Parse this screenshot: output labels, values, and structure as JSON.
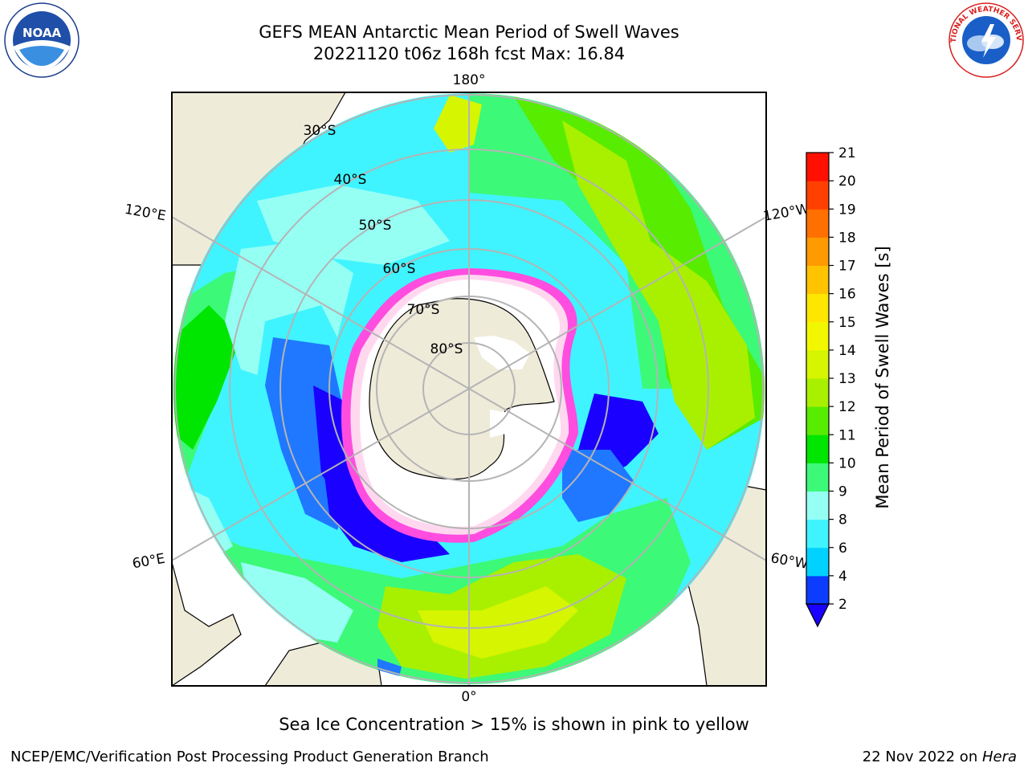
{
  "title": {
    "line1": "GEFS MEAN Antarctic Mean Period of Swell Waves",
    "line2": "20221120 t06z 168h fcst   Max: 16.84"
  },
  "map": {
    "projection": "south polar stereographic",
    "longitude_labels": [
      "180°",
      "120°E",
      "120°W",
      "60°E",
      "60°W",
      "0°"
    ],
    "latitude_labels": [
      "30°S",
      "40°S",
      "50°S",
      "60°S",
      "70°S",
      "80°S"
    ],
    "land_color": "#efebd9",
    "grid_color": "#b4b4b4"
  },
  "colorbar": {
    "label": "Mean Period of Swell Waves [s]",
    "ticks": [
      "2",
      "4",
      "6",
      "8",
      "9",
      "10",
      "11",
      "12",
      "13",
      "14",
      "15",
      "16",
      "17",
      "18",
      "19",
      "20",
      "21"
    ],
    "colors": [
      "#0b3cff",
      "#00d2ff",
      "#3ff4ff",
      "#96fff4",
      "#3cf978",
      "#00e600",
      "#58ec00",
      "#a8f000",
      "#d6f500",
      "#f2f700",
      "#ffe600",
      "#ffc300",
      "#ff9a00",
      "#ff7000",
      "#ff4000",
      "#ff1000"
    ],
    "under_color": "#1a00ff"
  },
  "caption": "Sea Ice Concentration > 15% is shown in pink to yellow",
  "footer": {
    "left": "NCEP/EMC/Verification Post Processing Product Generation Branch",
    "right_prefix": "22 Nov 2022 on ",
    "right_italic": "Hera"
  },
  "logos": {
    "noaa_text": "NOAA",
    "nws_text": "NATIONAL WEATHER SERVICE"
  }
}
